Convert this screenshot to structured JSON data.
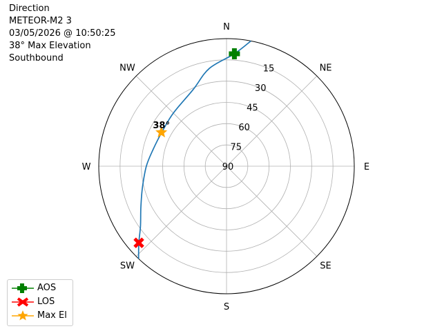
{
  "title_lines": [
    "Direction",
    "METEOR-M2 3",
    "03/05/2026 @ 10:50:25",
    "38° Max Elevation",
    "Southbound"
  ],
  "chart_data": {
    "type": "polar-line",
    "direction_labels": [
      "N",
      "NE",
      "E",
      "SE",
      "S",
      "SW",
      "W",
      "NW"
    ],
    "radial_ticks": [
      "15",
      "30",
      "45",
      "60",
      "75",
      "90"
    ],
    "radial_axis": "elevation (90 at center, 0 at edge)",
    "grid": true,
    "track": {
      "color": "#1f77b4",
      "points_az_el": [
        [
          11,
          0
        ],
        [
          4,
          10.5
        ],
        [
          350,
          20
        ],
        [
          336.6,
          31
        ],
        [
          315,
          37
        ],
        [
          297,
          38.5
        ],
        [
          283,
          37
        ],
        [
          270,
          33.5
        ],
        [
          256,
          29
        ],
        [
          244.6,
          23.2
        ],
        [
          235,
          16
        ],
        [
          228.8,
          7.9
        ],
        [
          223.5,
          0
        ]
      ]
    },
    "markers": {
      "aos": {
        "az": 4,
        "el": 10.5,
        "color": "#008000",
        "shape": "plus"
      },
      "los": {
        "az": 228.8,
        "el": 7.9,
        "color": "#ff0000",
        "shape": "x"
      },
      "max_el": {
        "az": 297,
        "el": 38.5,
        "color": "#ffa500",
        "shape": "star",
        "label": "38°"
      }
    },
    "legend": {
      "placement": "bottom-left",
      "entries": [
        "AOS",
        "LOS",
        "Max El"
      ]
    }
  }
}
